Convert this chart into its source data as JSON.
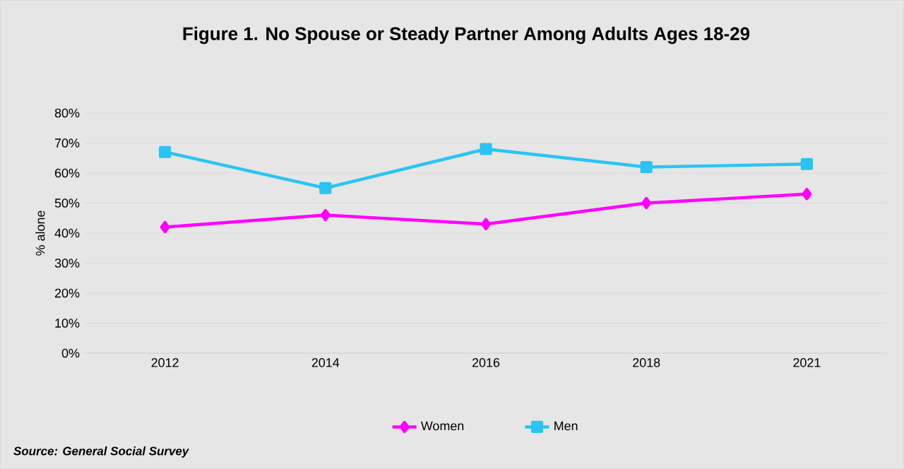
{
  "chart_data": {
    "type": "line",
    "title": "Figure 1. No Spouse or Steady Partner Among Adults Ages 18-29",
    "ylabel": "% alone",
    "categories": [
      "2012",
      "2014",
      "2016",
      "2018",
      "2021"
    ],
    "series": [
      {
        "name": "Women",
        "color": "#ff00ff",
        "marker": "diamond",
        "values": [
          42,
          46,
          43,
          50,
          53
        ]
      },
      {
        "name": "Men",
        "color": "#29c4f4",
        "marker": "square",
        "values": [
          67,
          55,
          68,
          62,
          63
        ]
      }
    ],
    "ylim": [
      0,
      80
    ],
    "yticks": [
      {
        "value": 0,
        "label": "0%"
      },
      {
        "value": 10,
        "label": "10%"
      },
      {
        "value": 20,
        "label": "20%"
      },
      {
        "value": 30,
        "label": "30%"
      },
      {
        "value": 40,
        "label": "40%"
      },
      {
        "value": 50,
        "label": "50%"
      },
      {
        "value": 60,
        "label": "60%"
      },
      {
        "value": 70,
        "label": "70%"
      },
      {
        "value": 80,
        "label": "80%"
      }
    ],
    "grid": "y",
    "legend": "bottom",
    "line_style": "solid",
    "annotations": [
      "Source: General Social Survey"
    ]
  }
}
